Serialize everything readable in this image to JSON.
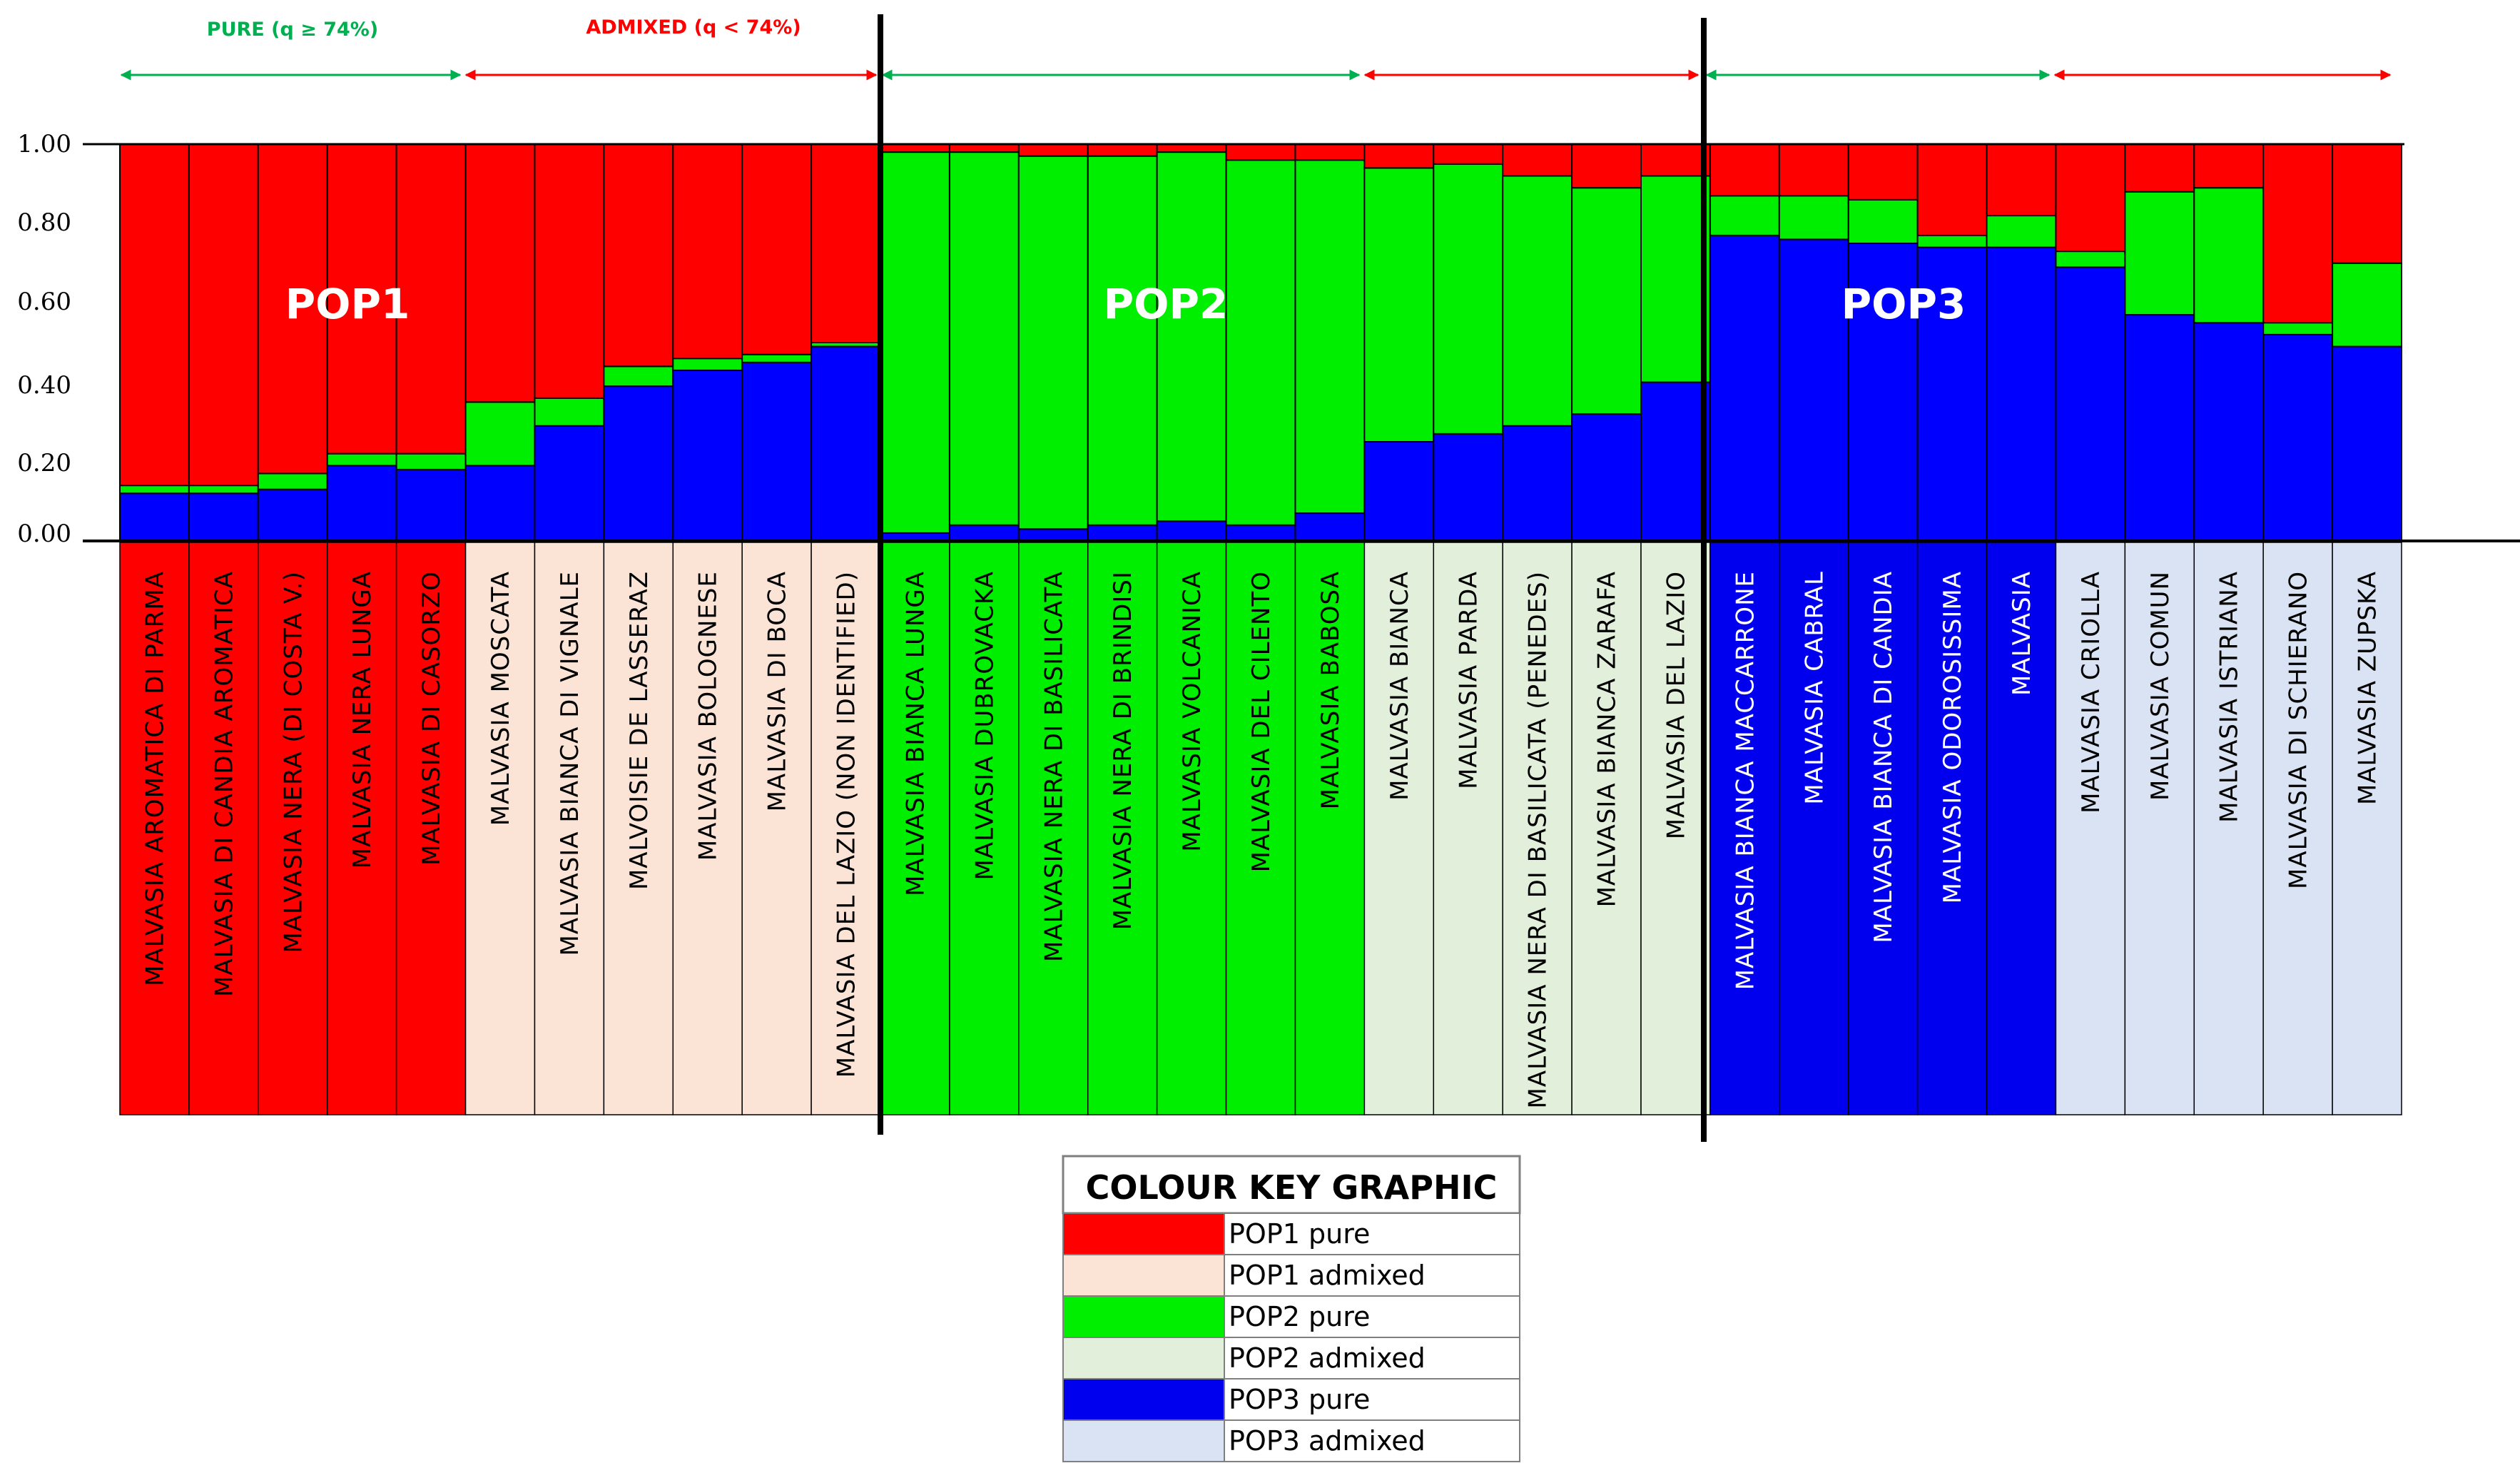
{
  "chart_data": {
    "type": "bar",
    "stacked": true,
    "y_axis": {
      "ylim": [
        0,
        1
      ],
      "tick_labels": [
        "0.00",
        "0.20",
        "0.40",
        "0.60",
        "0.80",
        "1.00"
      ]
    },
    "series": [
      {
        "name": "POP3 (blue)",
        "color": "#0000ff"
      },
      {
        "name": "POP2 (green)",
        "color": "#00ee00"
      },
      {
        "name": "POP1 (red)",
        "color": "#ff0000"
      }
    ],
    "pop_labels": [
      "POP1",
      "POP2",
      "POP3"
    ],
    "header": {
      "pure_label": "PURE (q ≥ 74%)",
      "admixed_label": "ADMIXED (q < 74%)"
    },
    "categories": [
      {
        "name": "MALVASIA AROMATICA DI PARMA",
        "blue": 0.12,
        "green": 0.02,
        "red": 0.86,
        "group": "POP1 pure"
      },
      {
        "name": "MALVASIA DI CANDIA AROMATICA",
        "blue": 0.12,
        "green": 0.02,
        "red": 0.86,
        "group": "POP1 pure"
      },
      {
        "name": "MALVASIA NERA (DI COSTA V.)",
        "blue": 0.13,
        "green": 0.04,
        "red": 0.83,
        "group": "POP1 pure"
      },
      {
        "name": "MALVASIA NERA LUNGA",
        "blue": 0.19,
        "green": 0.03,
        "red": 0.78,
        "group": "POP1 pure"
      },
      {
        "name": "MALVASIA DI CASORZO",
        "blue": 0.18,
        "green": 0.04,
        "red": 0.78,
        "group": "POP1 pure"
      },
      {
        "name": "MALVASIA MOSCATA",
        "blue": 0.19,
        "green": 0.16,
        "red": 0.65,
        "group": "POP1 admixed"
      },
      {
        "name": "MALVASIA BIANCA DI VIGNALE",
        "blue": 0.29,
        "green": 0.07,
        "red": 0.64,
        "group": "POP1 admixed"
      },
      {
        "name": "MALVOISIE DE LASSERAZ",
        "blue": 0.39,
        "green": 0.05,
        "red": 0.56,
        "group": "POP1 admixed"
      },
      {
        "name": "MALVASIA BOLOGNESE",
        "blue": 0.43,
        "green": 0.03,
        "red": 0.54,
        "group": "POP1 admixed"
      },
      {
        "name": "MALVASIA DI BOCA",
        "blue": 0.45,
        "green": 0.02,
        "red": 0.53,
        "group": "POP1 admixed"
      },
      {
        "name": "MALVASIA DEL LAZIO (NON IDENTIFIED)",
        "blue": 0.49,
        "green": 0.01,
        "red": 0.5,
        "group": "POP1 admixed"
      },
      {
        "name": "MALVASIA BIANCA LUNGA",
        "blue": 0.02,
        "green": 0.96,
        "red": 0.02,
        "group": "POP2 pure"
      },
      {
        "name": "MALVASIA DUBROVACKA",
        "blue": 0.04,
        "green": 0.94,
        "red": 0.02,
        "group": "POP2 pure"
      },
      {
        "name": "MALVASIA NERA DI BASILICATA",
        "blue": 0.03,
        "green": 0.94,
        "red": 0.03,
        "group": "POP2 pure"
      },
      {
        "name": "MALVASIA NERA DI BRINDISI",
        "blue": 0.04,
        "green": 0.93,
        "red": 0.03,
        "group": "POP2 pure"
      },
      {
        "name": "MALVASIA VOLCANICA",
        "blue": 0.05,
        "green": 0.93,
        "red": 0.02,
        "group": "POP2 pure"
      },
      {
        "name": "MALVASIA DEL CILENTO",
        "blue": 0.04,
        "green": 0.92,
        "red": 0.04,
        "group": "POP2 pure"
      },
      {
        "name": "MALVASIA BABOSA",
        "blue": 0.07,
        "green": 0.89,
        "red": 0.04,
        "group": "POP2 pure"
      },
      {
        "name": "MALVASIA BIANCA",
        "blue": 0.25,
        "green": 0.69,
        "red": 0.06,
        "group": "POP2 admixed"
      },
      {
        "name": "MALVASIA PARDA",
        "blue": 0.27,
        "green": 0.68,
        "red": 0.05,
        "group": "POP2 admixed"
      },
      {
        "name": "MALVASIA NERA DI BASILICATA (PENEDES)",
        "blue": 0.29,
        "green": 0.63,
        "red": 0.08,
        "group": "POP2 admixed"
      },
      {
        "name": "MALVASIA BIANCA ZARAFA",
        "blue": 0.32,
        "green": 0.57,
        "red": 0.11,
        "group": "POP2 admixed"
      },
      {
        "name": "MALVASIA DEL LAZIO",
        "blue": 0.4,
        "green": 0.52,
        "red": 0.08,
        "group": "POP2 admixed"
      },
      {
        "name": "MALVASIA BIANCA MACCARRONE",
        "blue": 0.77,
        "green": 0.1,
        "red": 0.13,
        "group": "POP3 pure"
      },
      {
        "name": "MALVASIA CABRAL",
        "blue": 0.76,
        "green": 0.11,
        "red": 0.13,
        "group": "POP3 pure"
      },
      {
        "name": "MALVASIA BIANCA DI CANDIA",
        "blue": 0.75,
        "green": 0.11,
        "red": 0.14,
        "group": "POP3 pure"
      },
      {
        "name": "MALVASIA ODOROSISSIMA",
        "blue": 0.74,
        "green": 0.03,
        "red": 0.23,
        "group": "POP3 pure"
      },
      {
        "name": "MALVASIA",
        "blue": 0.74,
        "green": 0.08,
        "red": 0.18,
        "group": "POP3 pure"
      },
      {
        "name": "MALVASIA CRIOLLA",
        "blue": 0.69,
        "green": 0.04,
        "red": 0.27,
        "group": "POP3 admixed"
      },
      {
        "name": "MALVASIA COMUN",
        "blue": 0.57,
        "green": 0.31,
        "red": 0.12,
        "group": "POP3 admixed"
      },
      {
        "name": "MALVASIA ISTRIANA",
        "blue": 0.55,
        "green": 0.34,
        "red": 0.11,
        "group": "POP3 admixed"
      },
      {
        "name": "MALVASIA DI SCHIERANO",
        "blue": 0.52,
        "green": 0.03,
        "red": 0.45,
        "group": "POP3 admixed"
      },
      {
        "name": "MALVASIA ZUPSKA",
        "blue": 0.49,
        "green": 0.21,
        "red": 0.3,
        "group": "POP3 admixed"
      }
    ],
    "legend": {
      "title": "COLOUR KEY GRAPHIC",
      "items": [
        {
          "label": "POP1 pure",
          "color": "#ff0000",
          "text_color": "#ffffff"
        },
        {
          "label": "POP1 admixed",
          "color": "#fbe4d6",
          "text_color": "#000000"
        },
        {
          "label": "POP2 pure",
          "color": "#00ee00",
          "text_color": "#000000"
        },
        {
          "label": "POP2 admixed",
          "color": "#e2efda",
          "text_color": "#000000"
        },
        {
          "label": "POP3 pure",
          "color": "#0000ee",
          "text_color": "#ffffff"
        },
        {
          "label": "POP3 admixed",
          "color": "#dae3f3",
          "text_color": "#000000"
        }
      ]
    }
  }
}
